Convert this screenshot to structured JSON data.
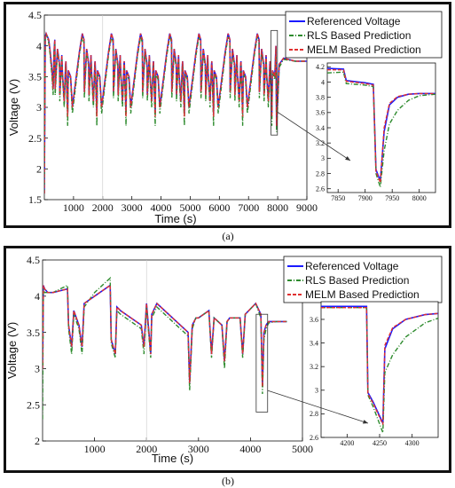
{
  "colors": {
    "referenced": "#1a1aff",
    "rls": "#2e8b2e",
    "melm": "#e03030",
    "axis": "#111111",
    "zoombox": "#333333"
  },
  "panels": [
    {
      "caption": "(a)"
    },
    {
      "caption": "(b)"
    }
  ],
  "chart_data": [
    {
      "id": "a-main",
      "type": "line",
      "xlabel": "Time (s)",
      "ylabel": "Voltage (V)",
      "xlim": [
        0,
        9000
      ],
      "ylim": [
        1.5,
        4.5
      ],
      "xticks": [
        1000,
        2000,
        3000,
        4000,
        5000,
        6000,
        7000,
        8000,
        9000
      ],
      "yticks": [
        1.5,
        2,
        2.5,
        3,
        3.5,
        4,
        4.5
      ],
      "grid": false,
      "legend_position": "top-right",
      "series": [
        {
          "name": "Referenced Voltage",
          "color_key": "referenced",
          "style": "solid",
          "key": "ref"
        },
        {
          "name": "RLS Based Prediction",
          "color_key": "rls",
          "style": "dashdot",
          "key": "rls"
        },
        {
          "name": "MELM Based Prediction",
          "color_key": "melm",
          "style": "dashed",
          "key": "melm"
        }
      ],
      "x": [
        0,
        30,
        60,
        150,
        200,
        260,
        300,
        330,
        360,
        370,
        450,
        520,
        530,
        600,
        620,
        680,
        730,
        740,
        800,
        820,
        900,
        960,
        1200,
        1300,
        1330,
        1360,
        1370,
        1450,
        1520,
        1530,
        1600,
        1620,
        1680,
        1730,
        1740,
        1800,
        1820,
        1900,
        1960,
        2200,
        2300,
        2330,
        2360,
        2370,
        2450,
        2520,
        2530,
        2600,
        2620,
        2680,
        2730,
        2740,
        2800,
        2820,
        2900,
        2960,
        3200,
        3300,
        3330,
        3360,
        3370,
        3450,
        3520,
        3530,
        3600,
        3620,
        3680,
        3730,
        3740,
        3800,
        3820,
        3900,
        3960,
        4200,
        4300,
        4330,
        4360,
        4370,
        4450,
        4520,
        4530,
        4600,
        4620,
        4680,
        4730,
        4740,
        4800,
        4820,
        4900,
        4960,
        5200,
        5300,
        5330,
        5360,
        5370,
        5450,
        5520,
        5530,
        5600,
        5620,
        5680,
        5730,
        5740,
        5800,
        5820,
        5900,
        5960,
        6200,
        6300,
        6330,
        6360,
        6370,
        6450,
        6520,
        6530,
        6600,
        6620,
        6680,
        6730,
        6740,
        6800,
        6820,
        6900,
        6960,
        7200,
        7300,
        7330,
        7360,
        7370,
        7450,
        7520,
        7530,
        7600,
        7620,
        7680,
        7730,
        7740,
        7800,
        7820,
        7900,
        7940,
        7960,
        8050,
        8200,
        8600,
        9000
      ],
      "ref": [
        1.6,
        4.15,
        4.2,
        4.1,
        3.9,
        3.6,
        3.3,
        3.9,
        4.1,
        3.3,
        3.95,
        3.7,
        3.2,
        3.85,
        3.55,
        3.1,
        3.7,
        3.75,
        2.9,
        3.6,
        3.5,
        3.0,
        3.9,
        4.2,
        4.15,
        4.1,
        3.25,
        3.95,
        3.7,
        3.2,
        3.85,
        3.55,
        3.1,
        3.7,
        3.75,
        2.9,
        3.6,
        3.5,
        3.0,
        3.9,
        4.2,
        4.15,
        4.1,
        3.25,
        3.95,
        3.7,
        3.2,
        3.85,
        3.55,
        3.1,
        3.7,
        3.75,
        2.9,
        3.6,
        3.5,
        3.0,
        3.9,
        4.2,
        4.15,
        4.1,
        3.25,
        3.95,
        3.7,
        3.2,
        3.85,
        3.55,
        3.1,
        3.7,
        3.75,
        2.9,
        3.6,
        3.5,
        3.0,
        3.9,
        4.2,
        4.15,
        4.1,
        3.25,
        3.95,
        3.7,
        3.2,
        3.85,
        3.55,
        3.1,
        3.7,
        3.75,
        2.9,
        3.6,
        3.5,
        3.0,
        3.9,
        4.2,
        4.15,
        4.1,
        3.25,
        3.95,
        3.7,
        3.2,
        3.85,
        3.55,
        3.1,
        3.7,
        3.75,
        2.9,
        3.6,
        3.5,
        3.0,
        3.9,
        4.2,
        4.15,
        4.1,
        3.25,
        3.95,
        3.7,
        3.2,
        3.85,
        3.55,
        3.1,
        3.7,
        3.75,
        2.9,
        3.6,
        3.5,
        3.0,
        3.9,
        4.2,
        4.15,
        4.1,
        3.25,
        3.95,
        3.7,
        3.2,
        3.85,
        3.55,
        3.1,
        3.7,
        3.75,
        2.9,
        3.6,
        3.5,
        4.0,
        2.7,
        3.7,
        3.8,
        3.75,
        3.75
      ],
      "rls": [
        1.6,
        4.1,
        4.2,
        4.05,
        3.85,
        3.5,
        3.2,
        3.85,
        4.05,
        3.2,
        3.9,
        3.65,
        3.1,
        3.8,
        3.5,
        3.0,
        3.65,
        3.7,
        2.7,
        3.55,
        3.45,
        2.9,
        3.85,
        4.15,
        4.1,
        4.05,
        3.15,
        3.9,
        3.65,
        3.1,
        3.8,
        3.5,
        3.0,
        3.65,
        3.7,
        2.7,
        3.55,
        3.45,
        2.9,
        3.85,
        4.15,
        4.1,
        4.05,
        3.15,
        3.9,
        3.65,
        3.1,
        3.8,
        3.5,
        3.0,
        3.65,
        3.7,
        2.7,
        3.55,
        3.45,
        2.9,
        3.85,
        4.15,
        4.1,
        4.05,
        3.15,
        3.9,
        3.65,
        3.1,
        3.8,
        3.5,
        3.0,
        3.65,
        3.7,
        2.7,
        3.55,
        3.45,
        2.9,
        3.85,
        4.15,
        4.1,
        4.05,
        3.15,
        3.9,
        3.65,
        3.1,
        3.8,
        3.5,
        3.0,
        3.65,
        3.7,
        2.7,
        3.55,
        3.45,
        2.9,
        3.85,
        4.15,
        4.1,
        4.05,
        3.15,
        3.9,
        3.65,
        3.1,
        3.8,
        3.5,
        3.0,
        3.65,
        3.7,
        2.7,
        3.55,
        3.45,
        2.9,
        3.85,
        4.15,
        4.1,
        4.05,
        3.15,
        3.9,
        3.65,
        3.1,
        3.8,
        3.5,
        3.0,
        3.65,
        3.7,
        2.7,
        3.55,
        3.45,
        2.9,
        3.85,
        4.15,
        4.1,
        4.05,
        3.15,
        3.9,
        3.65,
        3.1,
        3.8,
        3.5,
        3.0,
        3.65,
        3.7,
        2.7,
        3.55,
        3.45,
        3.95,
        2.6,
        3.65,
        3.78,
        3.75,
        3.75
      ],
      "melm": [
        1.6,
        4.15,
        4.2,
        4.1,
        3.9,
        3.6,
        3.3,
        3.9,
        4.1,
        3.3,
        3.95,
        3.7,
        3.2,
        3.85,
        3.55,
        3.1,
        3.7,
        3.75,
        2.85,
        3.6,
        3.5,
        3.0,
        3.9,
        4.2,
        4.15,
        4.1,
        3.25,
        3.95,
        3.7,
        3.2,
        3.85,
        3.55,
        3.1,
        3.7,
        3.75,
        2.85,
        3.6,
        3.5,
        3.0,
        3.9,
        4.2,
        4.15,
        4.1,
        3.25,
        3.95,
        3.7,
        3.2,
        3.85,
        3.55,
        3.1,
        3.7,
        3.75,
        2.85,
        3.6,
        3.5,
        3.0,
        3.9,
        4.2,
        4.15,
        4.1,
        3.25,
        3.95,
        3.7,
        3.2,
        3.85,
        3.55,
        3.1,
        3.7,
        3.75,
        2.85,
        3.6,
        3.5,
        3.0,
        3.9,
        4.2,
        4.15,
        4.1,
        3.25,
        3.95,
        3.7,
        3.2,
        3.85,
        3.55,
        3.1,
        3.7,
        3.75,
        2.85,
        3.6,
        3.5,
        3.0,
        3.9,
        4.2,
        4.15,
        4.1,
        3.25,
        3.95,
        3.7,
        3.2,
        3.85,
        3.55,
        3.1,
        3.7,
        3.75,
        2.85,
        3.6,
        3.5,
        3.0,
        3.9,
        4.2,
        4.15,
        4.1,
        3.25,
        3.95,
        3.7,
        3.2,
        3.85,
        3.55,
        3.1,
        3.7,
        3.75,
        2.85,
        3.6,
        3.5,
        3.0,
        3.9,
        4.2,
        4.15,
        4.1,
        3.25,
        3.95,
        3.7,
        3.2,
        3.85,
        3.55,
        3.1,
        3.7,
        3.75,
        2.85,
        3.6,
        3.5,
        4.0,
        2.7,
        3.7,
        3.8,
        3.75,
        3.75
      ]
    },
    {
      "id": "a-zoom",
      "type": "line",
      "xlim": [
        7830,
        8030
      ],
      "ylim": [
        2.55,
        4.25
      ],
      "xticks": [
        7850,
        7900,
        7950,
        8000
      ],
      "yticks": [
        2.6,
        2.8,
        3,
        3.2,
        3.4,
        3.6,
        3.8,
        4,
        4.2
      ],
      "series": [
        {
          "name": "Referenced Voltage",
          "color_key": "referenced",
          "style": "solid",
          "key": "ref"
        },
        {
          "name": "RLS Based Prediction",
          "color_key": "rls",
          "style": "dashdot",
          "key": "rls"
        },
        {
          "name": "MELM Based Prediction",
          "color_key": "melm",
          "style": "dashed",
          "key": "melm"
        }
      ],
      "x": [
        7830,
        7860,
        7865,
        7900,
        7915,
        7920,
        7928,
        7935,
        7945,
        7960,
        7980,
        8000,
        8030
      ],
      "ref": [
        4.18,
        4.17,
        4.02,
        3.99,
        3.97,
        2.85,
        2.7,
        3.35,
        3.7,
        3.8,
        3.84,
        3.85,
        3.85
      ],
      "rls": [
        4.12,
        4.13,
        3.98,
        3.96,
        3.94,
        2.8,
        2.62,
        3.1,
        3.45,
        3.63,
        3.76,
        3.82,
        3.84
      ],
      "melm": [
        4.16,
        4.16,
        4.01,
        3.98,
        3.96,
        2.83,
        2.68,
        3.4,
        3.72,
        3.81,
        3.84,
        3.85,
        3.85
      ]
    },
    {
      "id": "b-main",
      "type": "line",
      "xlabel": "Time (s)",
      "ylabel": "Voltage (V)",
      "xlim": [
        0,
        5000
      ],
      "ylim": [
        2,
        4.5
      ],
      "xticks": [
        1000,
        2000,
        3000,
        4000,
        5000
      ],
      "yticks": [
        2,
        2.5,
        3,
        3.5,
        4,
        4.5
      ],
      "grid": false,
      "legend_position": "top-right",
      "series": [
        {
          "name": "Referenced Voltage",
          "color_key": "referenced",
          "style": "solid",
          "key": "ref"
        },
        {
          "name": "RLS Based Prediction",
          "color_key": "rls",
          "style": "dashdot",
          "key": "rls"
        },
        {
          "name": "MELM Based Prediction",
          "color_key": "melm",
          "style": "dashed",
          "key": "melm"
        }
      ],
      "x": [
        0,
        15,
        40,
        100,
        200,
        480,
        500,
        560,
        600,
        700,
        760,
        800,
        1000,
        1300,
        1320,
        1400,
        1430,
        1500,
        1900,
        1950,
        2000,
        2080,
        2100,
        2200,
        2800,
        2830,
        2880,
        2950,
        3000,
        3200,
        3250,
        3300,
        3450,
        3500,
        3550,
        3600,
        3800,
        3850,
        3900,
        4100,
        4200,
        4230,
        4260,
        4300,
        4350,
        4500,
        4700
      ],
      "ref": [
        3.0,
        4.15,
        4.1,
        4.05,
        4.05,
        4.1,
        3.6,
        3.3,
        3.8,
        3.6,
        3.3,
        3.9,
        4.0,
        4.15,
        3.4,
        3.2,
        3.85,
        3.8,
        3.6,
        3.3,
        3.9,
        3.2,
        3.75,
        3.9,
        3.5,
        2.8,
        3.6,
        3.7,
        3.7,
        3.8,
        3.2,
        3.7,
        3.6,
        3.1,
        3.65,
        3.7,
        3.7,
        3.2,
        3.75,
        3.9,
        3.75,
        2.75,
        3.5,
        3.6,
        3.65,
        3.65,
        3.65
      ],
      "rls": [
        2.3,
        4.1,
        4.05,
        4.05,
        4.05,
        4.15,
        3.55,
        3.2,
        3.75,
        3.55,
        3.2,
        3.85,
        4.05,
        4.25,
        3.35,
        3.15,
        3.8,
        3.75,
        3.55,
        3.2,
        3.85,
        3.15,
        3.7,
        3.85,
        3.45,
        2.7,
        3.55,
        3.7,
        3.7,
        3.8,
        3.15,
        3.7,
        3.6,
        3.0,
        3.65,
        3.7,
        3.7,
        3.15,
        3.75,
        3.9,
        3.7,
        2.65,
        3.4,
        3.55,
        3.63,
        3.65,
        3.65
      ],
      "melm": [
        3.0,
        4.15,
        4.1,
        4.05,
        4.05,
        4.1,
        3.6,
        3.3,
        3.8,
        3.6,
        3.3,
        3.9,
        4.0,
        4.15,
        3.4,
        3.2,
        3.85,
        3.8,
        3.6,
        3.3,
        3.9,
        3.2,
        3.75,
        3.9,
        3.5,
        2.8,
        3.6,
        3.7,
        3.7,
        3.8,
        3.2,
        3.7,
        3.6,
        3.1,
        3.65,
        3.7,
        3.7,
        3.2,
        3.75,
        3.9,
        3.75,
        2.75,
        3.5,
        3.6,
        3.65,
        3.65,
        3.65
      ]
    },
    {
      "id": "b-zoom",
      "type": "line",
      "xlim": [
        4160,
        4340
      ],
      "ylim": [
        2.6,
        3.75
      ],
      "xticks": [
        4200,
        4250,
        4300
      ],
      "yticks": [
        2.6,
        2.8,
        3,
        3.2,
        3.4,
        3.6
      ],
      "series": [
        {
          "name": "Referenced Voltage",
          "color_key": "referenced",
          "style": "solid",
          "key": "ref"
        },
        {
          "name": "RLS Based Prediction",
          "color_key": "rls",
          "style": "dashdot",
          "key": "rls"
        },
        {
          "name": "MELM Based Prediction",
          "color_key": "melm",
          "style": "dashed",
          "key": "melm"
        }
      ],
      "x": [
        4160,
        4200,
        4230,
        4232,
        4240,
        4255,
        4258,
        4270,
        4290,
        4320,
        4340
      ],
      "ref": [
        3.71,
        3.71,
        3.71,
        2.98,
        2.9,
        2.72,
        3.35,
        3.52,
        3.6,
        3.64,
        3.65
      ],
      "rls": [
        3.7,
        3.7,
        3.7,
        2.96,
        2.86,
        2.64,
        3.15,
        3.3,
        3.45,
        3.57,
        3.61
      ],
      "melm": [
        3.7,
        3.7,
        3.7,
        2.97,
        2.89,
        2.71,
        3.38,
        3.53,
        3.6,
        3.64,
        3.65
      ]
    }
  ]
}
